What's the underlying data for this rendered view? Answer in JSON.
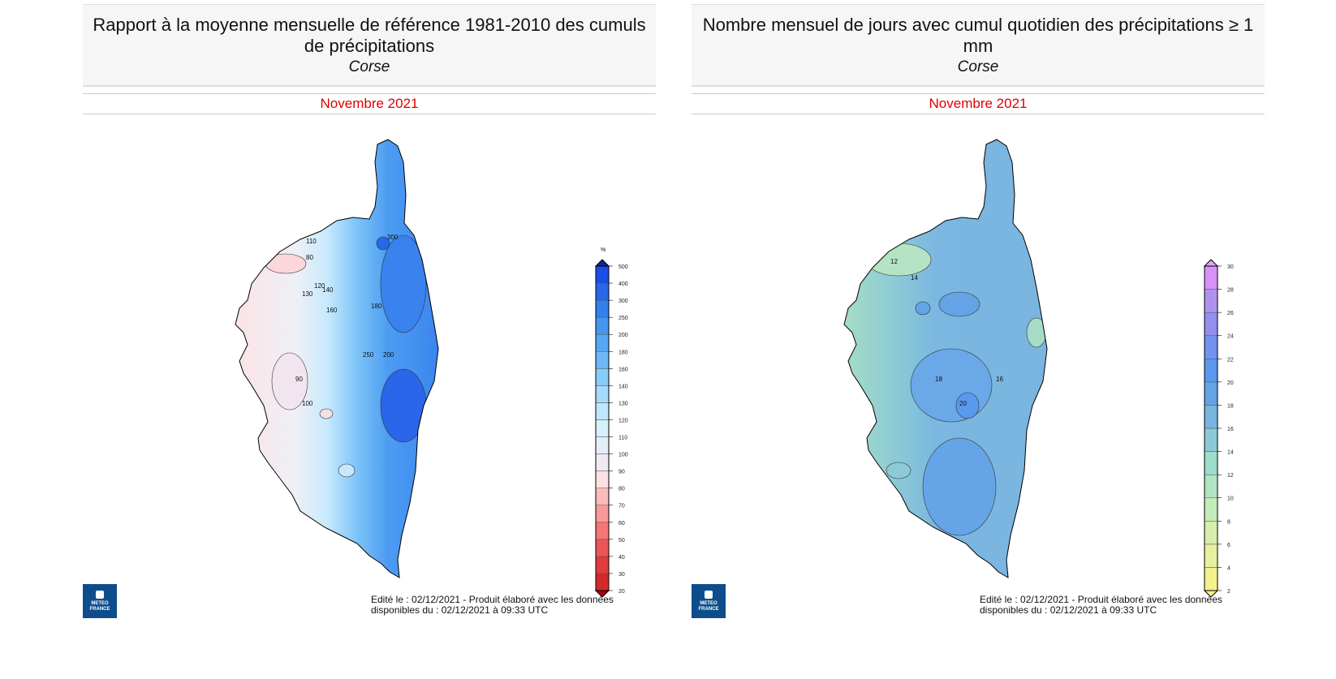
{
  "left": {
    "title": "Rapport à la moyenne mensuelle de référence 1981-2010 des cumuls de précipitations",
    "region": "Corse",
    "date": "Novembre 2021",
    "legend_unit": "%",
    "legend_labels": [
      "20",
      "30",
      "40",
      "50",
      "60",
      "70",
      "80",
      "90",
      "100",
      "110",
      "120",
      "130",
      "140",
      "160",
      "180",
      "200",
      "250",
      "300",
      "400",
      "500"
    ],
    "legend_colors": [
      "#d22a2a",
      "#e03c3c",
      "#ec5656",
      "#f47676",
      "#fa9999",
      "#fdbaba",
      "#fde0e3",
      "#efe9f1",
      "#e3eef7",
      "#d6f0fc",
      "#bfe6fc",
      "#a6dafb",
      "#88cbf9",
      "#6db9f7",
      "#56a8f4",
      "#4496f1",
      "#347fee",
      "#2866ea",
      "#1b4ee6"
    ],
    "arrow_low": "#a80010",
    "arrow_high": "#0a2a90",
    "contour_labels": [
      "80",
      "90",
      "100",
      "110",
      "120",
      "130",
      "140",
      "160",
      "180",
      "200",
      "250",
      "300"
    ],
    "footer_line1": "Edité le : 02/12/2021 - Produit élaboré avec les données",
    "footer_line2": "disponibles du : 02/12/2021 à 09:33 UTC",
    "logo_text": [
      "METEO",
      "FRANCE"
    ]
  },
  "right": {
    "title": "Nombre mensuel de jours avec cumul quotidien des précipitations ≥ 1 mm",
    "region": "Corse",
    "date": "Novembre 2021",
    "legend_labels": [
      "2",
      "4",
      "6",
      "8",
      "10",
      "12",
      "14",
      "16",
      "18",
      "20",
      "22",
      "24",
      "26",
      "28",
      "30"
    ],
    "legend_colors": [
      "#f4f08c",
      "#e6f0a0",
      "#d6eeaa",
      "#c4ecb8",
      "#b0e4c4",
      "#9edccc",
      "#8cc9d6",
      "#79b5df",
      "#64a3e6",
      "#5a99ee",
      "#7392ee",
      "#9190ee",
      "#b091f0",
      "#d692f6"
    ],
    "arrow_low": "#f4f08c",
    "arrow_high": "#e0a8f6",
    "contour_labels": [
      "12",
      "14",
      "16",
      "18",
      "20"
    ],
    "footer_line1": "Edité le : 02/12/2021 - Produit élaboré avec les données",
    "footer_line2": "disponibles du : 02/12/2021 à 09:33 UTC",
    "logo_text": [
      "METEO",
      "FRANCE"
    ]
  }
}
